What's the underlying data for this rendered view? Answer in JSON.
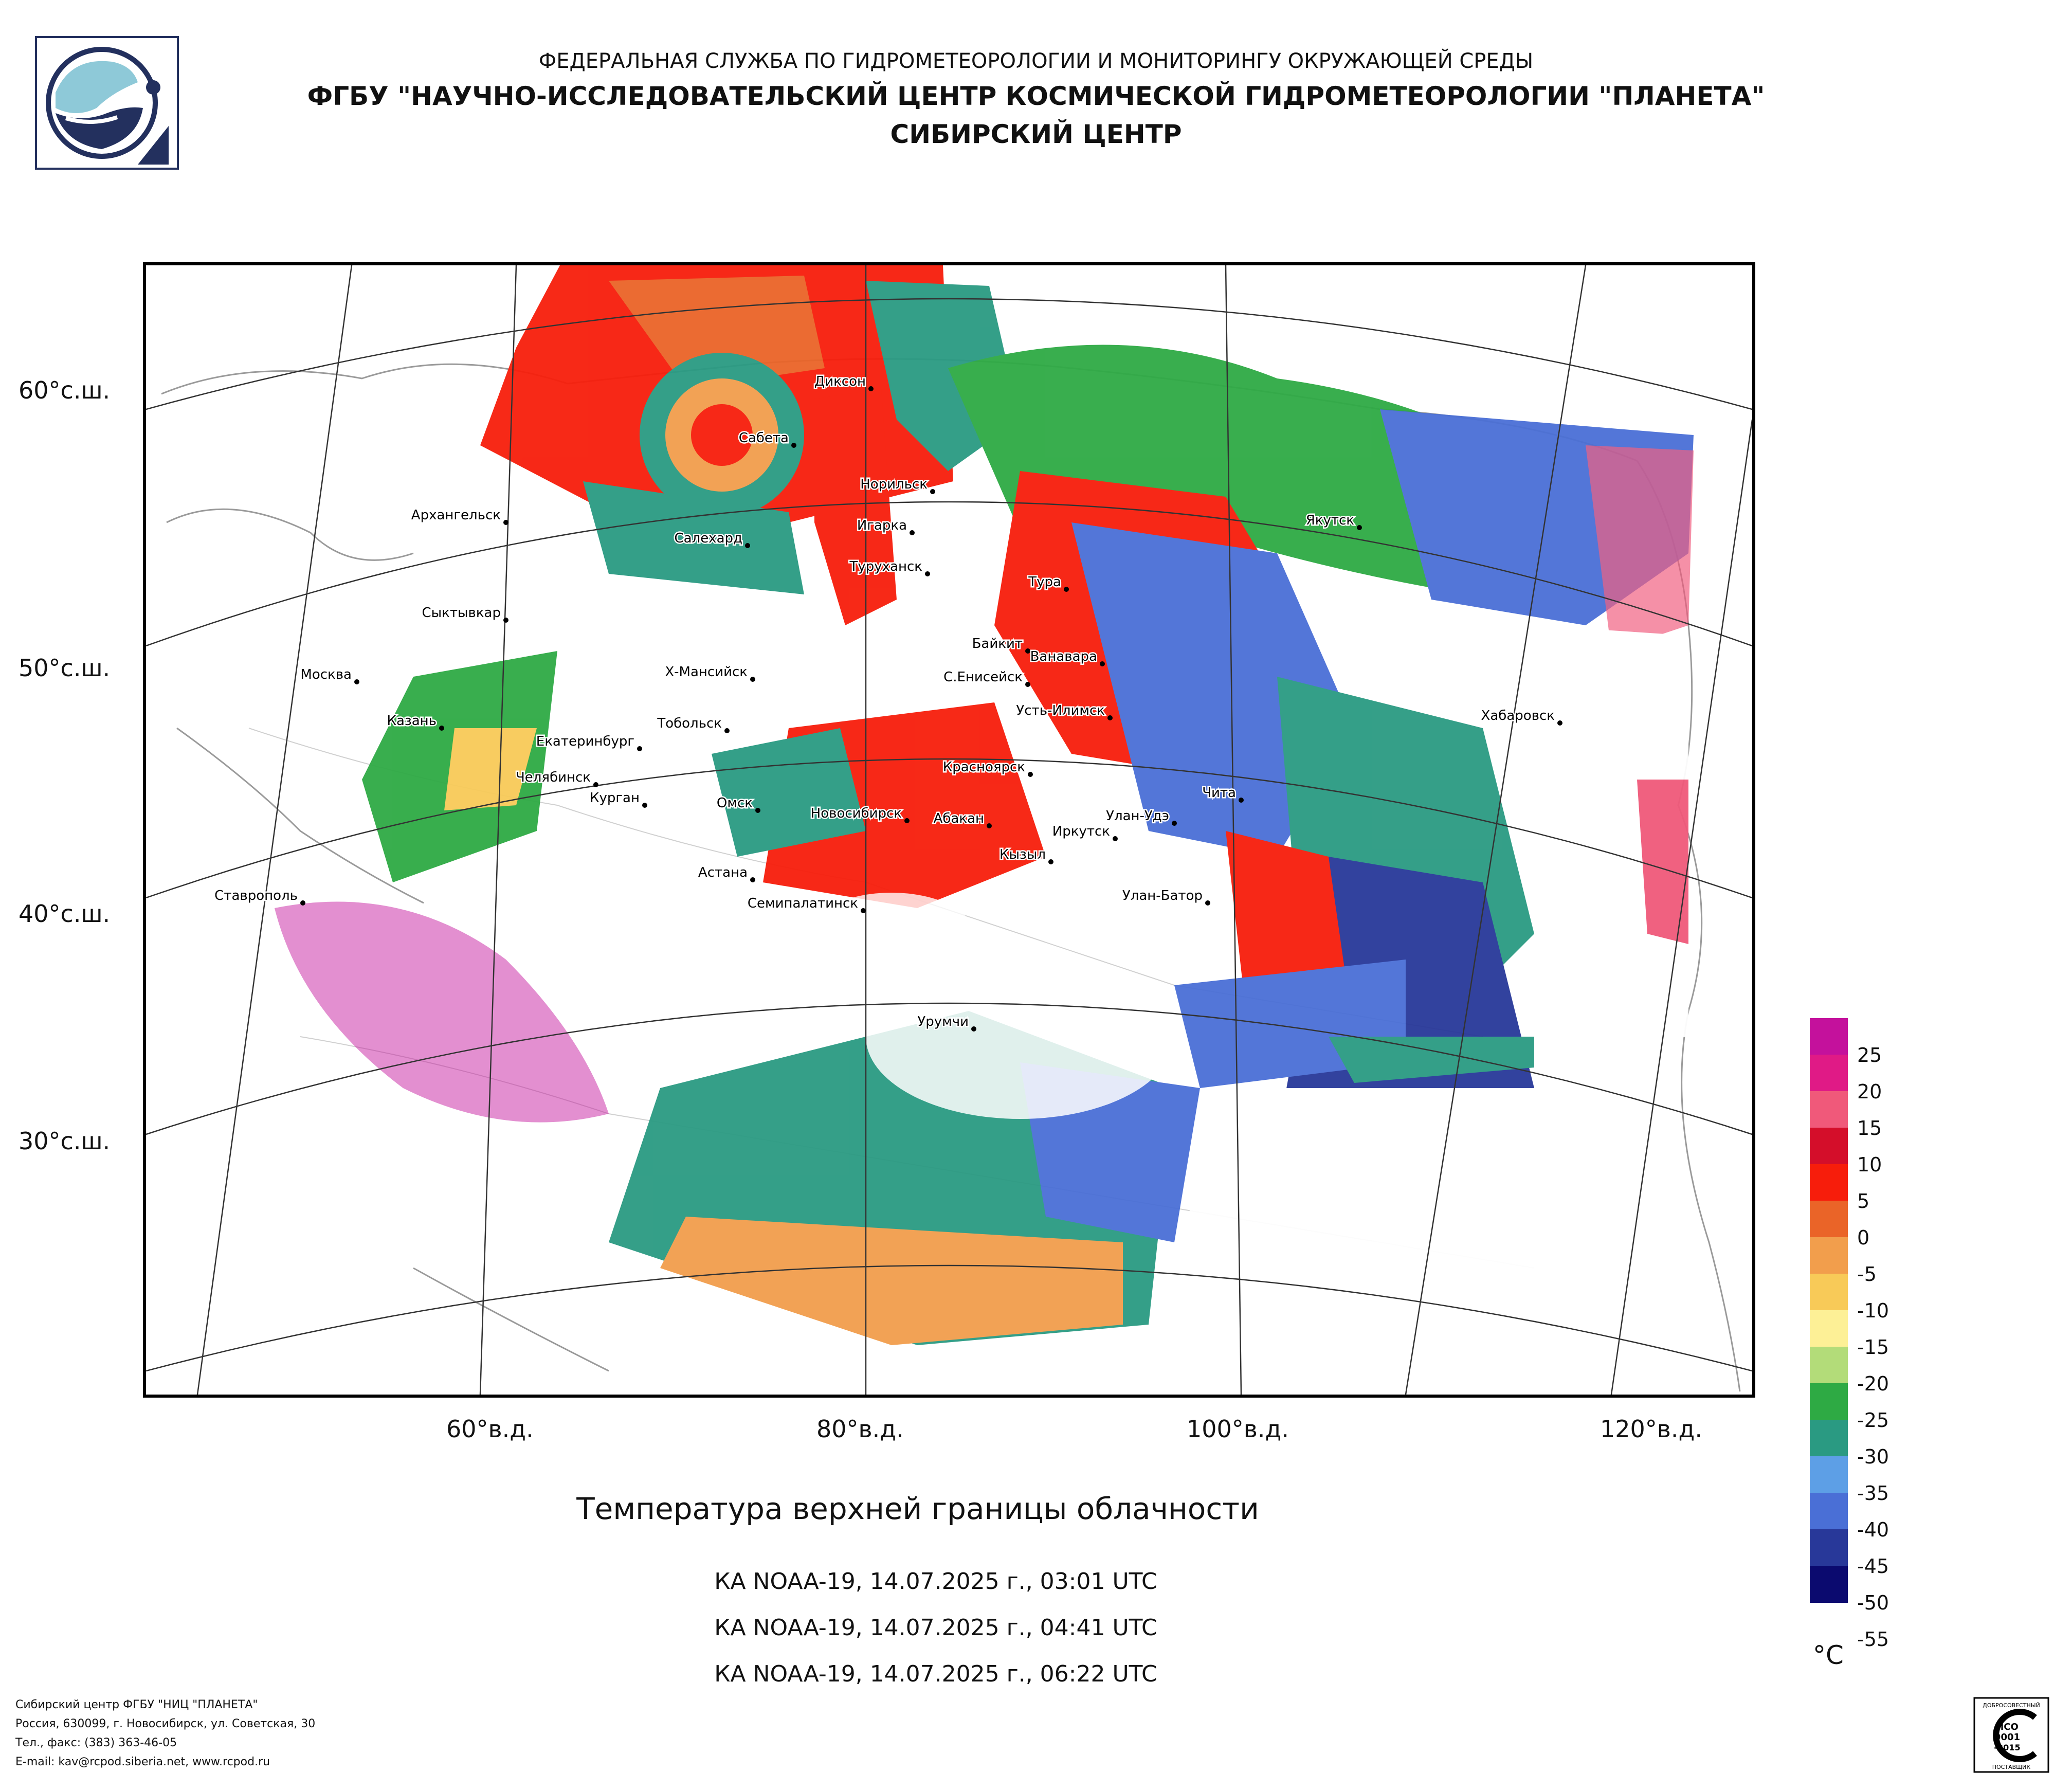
{
  "header": {
    "line1": "ФЕДЕРАЛЬНАЯ СЛУЖБА ПО ГИДРОМЕТЕОРОЛОГИИ И МОНИТОРИНГУ ОКРУЖАЮЩЕЙ СРЕДЫ",
    "line2": "ФГБУ \"НАУЧНО-ИССЛЕДОВАТЕЛЬСКИЙ ЦЕНТР КОСМИЧЕСКОЙ ГИДРОМЕТЕОРОЛОГИИ \"ПЛАНЕТА\"",
    "line3": "СИБИРСКИЙ ЦЕНТР"
  },
  "map": {
    "title": "Температура верхней границы облачности",
    "passes": [
      "КА NOAA-19, 14.07.2025 г., 03:01 UTC",
      "КА NOAA-19, 14.07.2025 г., 04:41 UTC",
      "КА NOAA-19, 14.07.2025 г., 06:22 UTC"
    ],
    "lat_labels": [
      "60°с.ш.",
      "50°с.ш.",
      "40°с.ш.",
      "30°с.ш."
    ],
    "lon_labels": [
      "60°в.д.",
      "80°в.д.",
      "100°в.д.",
      "120°в.д."
    ],
    "cities": [
      "Диксон",
      "Сабета",
      "Норильск",
      "Архангельск",
      "Салехард",
      "Игарка",
      "Туруханск",
      "Якутск",
      "Тура",
      "Сыктывкар",
      "Байкит",
      "Ванавара",
      "Москва",
      "Х-Мансийск",
      "С.Енисейск",
      "Усть-Илимск",
      "Казань",
      "Тобольск",
      "Хабаровск",
      "Екатеринбург",
      "Красноярск",
      "Челябинск",
      "Курган",
      "Чита",
      "Омск",
      "Новосибирск",
      "Абакан",
      "Улан-Удэ",
      "Иркутск",
      "Кызыл",
      "Астана",
      "Ставрополь",
      "Улан-Батор",
      "Семипалатинск",
      "Урумчи"
    ]
  },
  "legend": {
    "unit": "°C",
    "colors": [
      "#c4119c",
      "#e01a86",
      "#f0597a",
      "#d40e2a",
      "#f71d0b",
      "#ea6428",
      "#f29e4c",
      "#f8ca58",
      "#fdf096",
      "#b3dc79",
      "#2eaa44",
      "#2a9a82",
      "#5d9fe6",
      "#4a6fd6",
      "#283899",
      "#0b0a6f"
    ],
    "ticks": [
      "25",
      "20",
      "15",
      "10",
      "5",
      "0",
      "-5",
      "-10",
      "-15",
      "-20",
      "-25",
      "-30",
      "-35",
      "-40",
      "-45",
      "-50",
      "-55"
    ]
  },
  "footer": {
    "line1": "Сибирский центр ФГБУ \"НИЦ \"ПЛАНЕТА\"",
    "line2": "Россия, 630099, г. Новосибирск, ул. Советская, 30",
    "line3": "Тел., факс: (383) 363-46-05",
    "line4": "E-mail: kav@rcpod.siberia.net, www.rcpod.ru"
  },
  "badge": {
    "top": "ДОБРОСОВЕСТНЫЙ",
    "mid1": "ИСО",
    "mid2": "9001",
    "mid3": "-2015",
    "bottom": "ПОСТАВЩИК"
  }
}
